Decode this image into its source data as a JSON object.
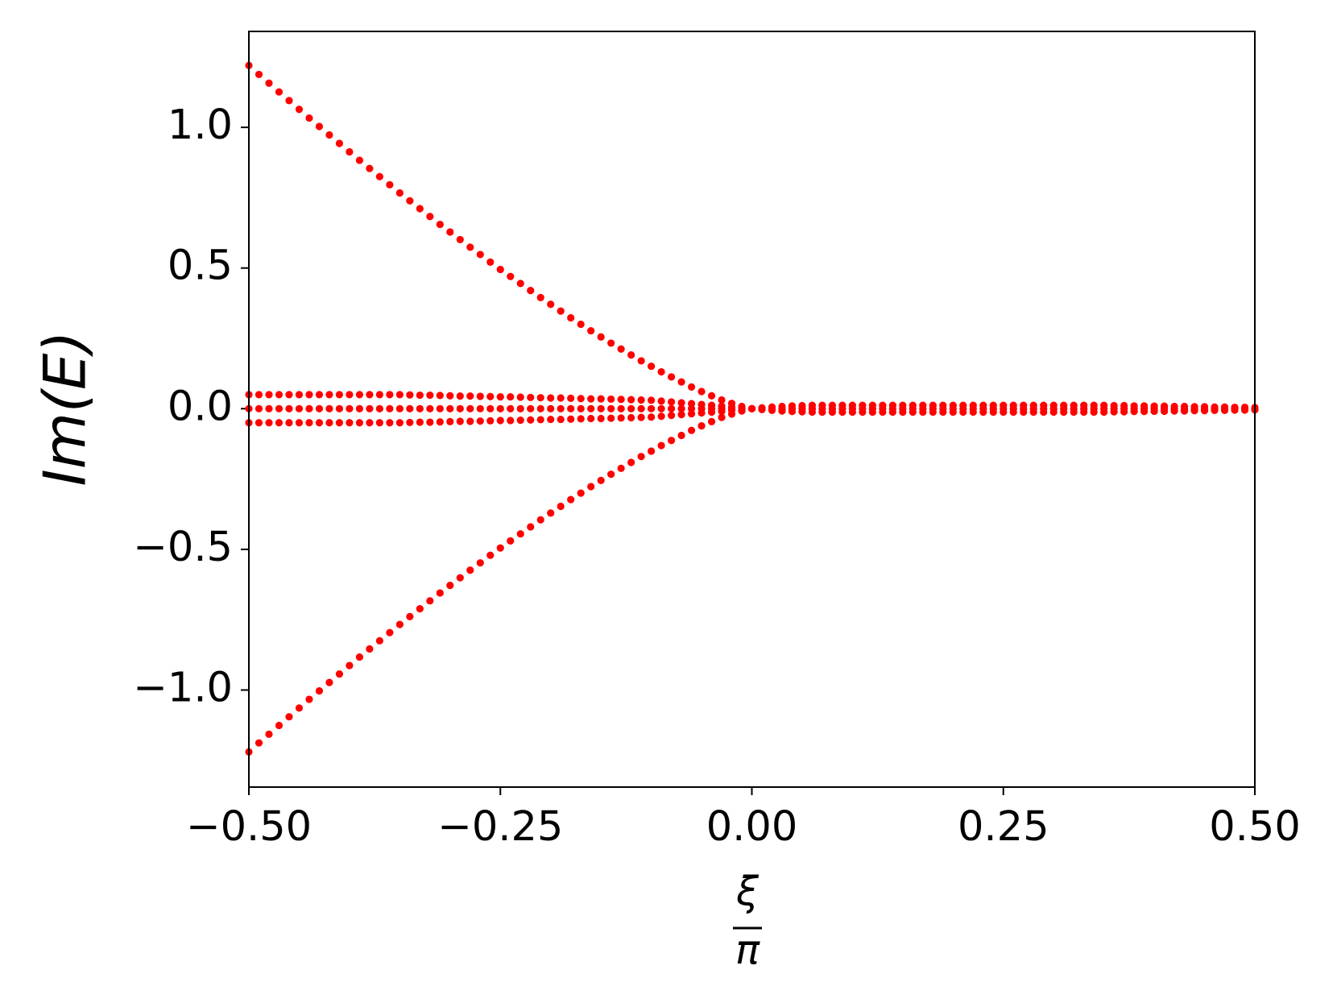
{
  "chart_data": {
    "type": "scatter",
    "ylabel": "Im(E)",
    "xlabel": {
      "numerator": "ξ",
      "denominator": "π"
    },
    "xlim": [
      -0.5,
      0.5
    ],
    "ylim": [
      -1.345,
      1.341
    ],
    "xticks": [
      {
        "value": -0.5,
        "label": "−0.50"
      },
      {
        "value": -0.25,
        "label": "−0.25"
      },
      {
        "value": 0,
        "label": "0.00"
      },
      {
        "value": 0.25,
        "label": "0.25"
      },
      {
        "value": 0.5,
        "label": "0.50"
      }
    ],
    "yticks": [
      {
        "value": -1.0,
        "label": "−1.0"
      },
      {
        "value": -0.5,
        "label": "−0.5"
      },
      {
        "value": 0.0,
        "label": "0.0"
      },
      {
        "value": 0.5,
        "label": "0.5"
      },
      {
        "value": 1.0,
        "label": "1.0"
      }
    ],
    "x": [
      -0.5,
      -0.49,
      -0.48,
      -0.47,
      -0.46,
      -0.45,
      -0.44,
      -0.43,
      -0.42,
      -0.41,
      -0.4,
      -0.39,
      -0.38,
      -0.37,
      -0.36,
      -0.35,
      -0.34,
      -0.33,
      -0.32,
      -0.31,
      -0.3,
      -0.29,
      -0.28,
      -0.27,
      -0.26,
      -0.25,
      -0.24,
      -0.23,
      -0.22,
      -0.21,
      -0.2,
      -0.19,
      -0.18,
      -0.17,
      -0.16,
      -0.15,
      -0.14,
      -0.13,
      -0.12,
      -0.11,
      -0.1,
      -0.09,
      -0.08,
      -0.07,
      -0.06,
      -0.05,
      -0.04,
      -0.03,
      -0.02,
      -0.01,
      0,
      0.01,
      0.02,
      0.03,
      0.04,
      0.05,
      0.06,
      0.07,
      0.08,
      0.09,
      0.1,
      0.11,
      0.12,
      0.13,
      0.14,
      0.15,
      0.16,
      0.17,
      0.18,
      0.19,
      0.2,
      0.21,
      0.22,
      0.23,
      0.24,
      0.25,
      0.26,
      0.27,
      0.28,
      0.29,
      0.3,
      0.31,
      0.32,
      0.33,
      0.34,
      0.35,
      0.36,
      0.37,
      0.38,
      0.39,
      0.4,
      0.41,
      0.42,
      0.43,
      0.44,
      0.45,
      0.46,
      0.47,
      0.48,
      0.49,
      0.5
    ],
    "series": [
      {
        "color": "#ff0000",
        "values": [
          1.22,
          1.188,
          1.157,
          1.126,
          1.095,
          1.064,
          1.033,
          1.003,
          0.973,
          0.943,
          0.913,
          0.883,
          0.854,
          0.825,
          0.796,
          0.767,
          0.739,
          0.711,
          0.683,
          0.655,
          0.628,
          0.601,
          0.574,
          0.548,
          0.521,
          0.495,
          0.47,
          0.445,
          0.42,
          0.395,
          0.371,
          0.347,
          0.323,
          0.3,
          0.277,
          0.255,
          0.233,
          0.212,
          0.191,
          0.17,
          0.151,
          0.131,
          0.113,
          0.095,
          0.077,
          0.061,
          0.046,
          0.031,
          0.019,
          0.008,
          0,
          null,
          null,
          null,
          null,
          null,
          null,
          null,
          null,
          null,
          null,
          null,
          null,
          null,
          null,
          null,
          null,
          null,
          null,
          null,
          null,
          null,
          null,
          null,
          null,
          null,
          null,
          null,
          null,
          null,
          null,
          null,
          null,
          null,
          null,
          null,
          null,
          null,
          null,
          null,
          null,
          null,
          null,
          null,
          null,
          null,
          null,
          null,
          null,
          null,
          null
        ]
      },
      {
        "color": "#ff0000",
        "values": [
          -1.22,
          -1.188,
          -1.157,
          -1.126,
          -1.095,
          -1.064,
          -1.033,
          -1.003,
          -0.973,
          -0.943,
          -0.913,
          -0.883,
          -0.854,
          -0.825,
          -0.796,
          -0.767,
          -0.739,
          -0.711,
          -0.683,
          -0.655,
          -0.628,
          -0.601,
          -0.574,
          -0.548,
          -0.521,
          -0.495,
          -0.47,
          -0.445,
          -0.42,
          -0.395,
          -0.371,
          -0.347,
          -0.323,
          -0.3,
          -0.277,
          -0.255,
          -0.233,
          -0.212,
          -0.191,
          -0.17,
          -0.151,
          -0.131,
          -0.113,
          -0.095,
          -0.077,
          -0.061,
          -0.046,
          -0.031,
          -0.019,
          -0.008,
          0,
          null,
          null,
          null,
          null,
          null,
          null,
          null,
          null,
          null,
          null,
          null,
          null,
          null,
          null,
          null,
          null,
          null,
          null,
          null,
          null,
          null,
          null,
          null,
          null,
          null,
          null,
          null,
          null,
          null,
          null,
          null,
          null,
          null,
          null,
          null,
          null,
          null,
          null,
          null,
          null,
          null,
          null,
          null,
          null,
          null,
          null,
          null,
          null,
          null,
          null
        ]
      },
      {
        "color": "#ff0000",
        "values": [
          0.05,
          0.05,
          0.05,
          0.05,
          0.05,
          0.05,
          0.05,
          0.05,
          0.05,
          0.05,
          0.05,
          0.05,
          0.05,
          0.05,
          0.05,
          0.05,
          0.049,
          0.048,
          0.048,
          0.047,
          0.046,
          0.045,
          0.045,
          0.044,
          0.043,
          0.042,
          0.042,
          0.041,
          0.04,
          0.039,
          0.038,
          0.038,
          0.037,
          0.036,
          0.035,
          0.035,
          0.034,
          0.033,
          0.032,
          0.031,
          0.03,
          0.027,
          0.024,
          0.021,
          0.018,
          0.015,
          0.012,
          0.009,
          0.006,
          0.003,
          0,
          0.003,
          0.006,
          0.008,
          0.01,
          0.011,
          0.012,
          0.012,
          0.012,
          0.012,
          0.012,
          0.012,
          0.012,
          0.012,
          0.012,
          0.012,
          0.012,
          0.012,
          0.012,
          0.012,
          0.012,
          0.012,
          0.012,
          0.012,
          0.012,
          0.012,
          0.012,
          0.012,
          0.012,
          0.012,
          0.012,
          0.012,
          0.012,
          0.012,
          0.012,
          0.012,
          0.011,
          0.011,
          0.01,
          0.01,
          0.009,
          0.009,
          0.008,
          0.008,
          0.007,
          0.007,
          0.006,
          0.006,
          0.005,
          0.005,
          0.004
        ]
      },
      {
        "color": "#ff0000",
        "values": [
          0,
          0,
          0,
          0,
          0,
          0,
          0,
          0,
          0,
          0,
          0,
          0,
          0,
          0,
          0,
          0,
          0,
          0,
          0,
          0,
          0,
          0,
          0,
          0,
          0,
          0,
          0,
          0,
          0,
          0,
          0,
          0,
          0,
          0,
          0,
          0,
          0,
          0,
          0,
          0,
          0,
          0,
          0,
          0,
          0,
          0,
          0,
          0,
          0,
          0,
          0,
          0,
          0,
          0,
          0,
          0,
          0,
          0,
          0,
          0,
          0,
          0,
          0,
          0,
          0,
          0,
          0,
          0,
          0,
          0,
          0,
          0,
          0,
          0,
          0,
          0,
          0,
          0,
          0,
          0,
          0,
          0,
          0,
          0,
          0,
          0,
          0,
          0,
          0,
          0,
          0,
          0,
          0,
          0,
          0,
          0,
          0,
          0,
          0,
          0,
          0
        ]
      },
      {
        "color": "#ff0000",
        "values": [
          -0.05,
          -0.05,
          -0.05,
          -0.05,
          -0.05,
          -0.05,
          -0.05,
          -0.05,
          -0.05,
          -0.05,
          -0.05,
          -0.05,
          -0.05,
          -0.05,
          -0.05,
          -0.05,
          -0.049,
          -0.048,
          -0.048,
          -0.047,
          -0.046,
          -0.045,
          -0.045,
          -0.044,
          -0.043,
          -0.042,
          -0.042,
          -0.041,
          -0.04,
          -0.039,
          -0.038,
          -0.038,
          -0.037,
          -0.036,
          -0.035,
          -0.035,
          -0.034,
          -0.033,
          -0.032,
          -0.031,
          -0.03,
          -0.027,
          -0.024,
          -0.021,
          -0.018,
          -0.015,
          -0.012,
          -0.009,
          -0.006,
          -0.003,
          0,
          -0.003,
          -0.006,
          -0.008,
          -0.01,
          -0.011,
          -0.012,
          -0.012,
          -0.012,
          -0.012,
          -0.012,
          -0.012,
          -0.012,
          -0.012,
          -0.012,
          -0.012,
          -0.012,
          -0.012,
          -0.012,
          -0.012,
          -0.012,
          -0.012,
          -0.012,
          -0.012,
          -0.012,
          -0.012,
          -0.012,
          -0.012,
          -0.012,
          -0.012,
          -0.012,
          -0.012,
          -0.012,
          -0.012,
          -0.012,
          -0.012,
          -0.011,
          -0.011,
          -0.01,
          -0.01,
          -0.009,
          -0.009,
          -0.008,
          -0.008,
          -0.007,
          -0.007,
          -0.006,
          -0.006,
          -0.005,
          -0.005,
          -0.004
        ]
      }
    ]
  }
}
